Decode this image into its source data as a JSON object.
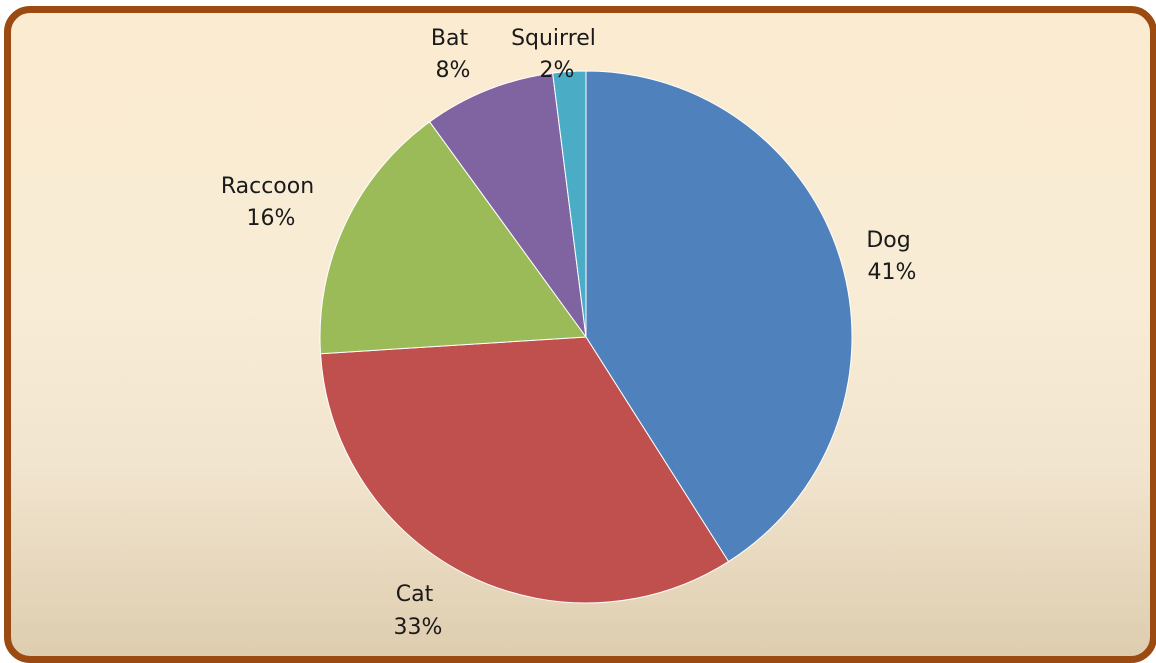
{
  "chart_data": {
    "type": "pie",
    "slices": [
      {
        "label": "Dog",
        "percent_label": "41%",
        "value": 41,
        "color": "#4f81bd"
      },
      {
        "label": "Cat",
        "percent_label": "33%",
        "value": 33,
        "color": "#c0504d"
      },
      {
        "label": "Raccoon",
        "percent_label": "16%",
        "value": 16,
        "color": "#9bbb59"
      },
      {
        "label": "Bat",
        "percent_label": "8%",
        "value": 8,
        "color": "#8064a2"
      },
      {
        "label": "Squirrel",
        "percent_label": "2%",
        "value": 2,
        "color": "#4bacc6"
      }
    ],
    "legend": "none",
    "labels": "outside, category and percentage"
  },
  "style": {
    "frame_border_color": "#9b4a12"
  }
}
